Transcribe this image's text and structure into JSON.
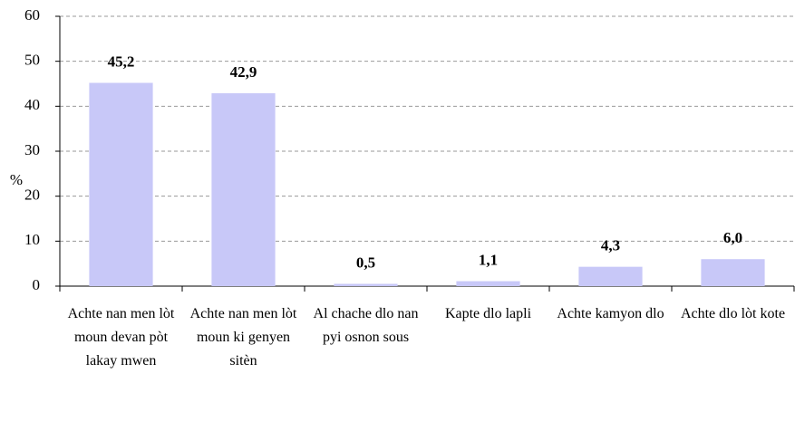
{
  "chart_data": {
    "type": "bar",
    "y_label": "%",
    "categories": [
      "Achte nan men lòt moun devan pòt lakay mwen",
      "Achte nan men lòt moun ki genyen sitèn",
      "Al chache dlo nan pyi osnon sous",
      "Kapte dlo lapli",
      "Achte kamyon dlo",
      "Achte dlo lòt kote"
    ],
    "values": [
      45.2,
      42.9,
      0.5,
      1.1,
      4.3,
      6.0
    ],
    "value_labels": [
      "45,2",
      "42,9",
      "0,5",
      "1,1",
      "4,3",
      "6,0"
    ],
    "color": "#c8c8f8",
    "ylim": [
      0,
      60
    ],
    "yticks": [
      0,
      10,
      20,
      30,
      40,
      50,
      60
    ],
    "grid": true
  }
}
